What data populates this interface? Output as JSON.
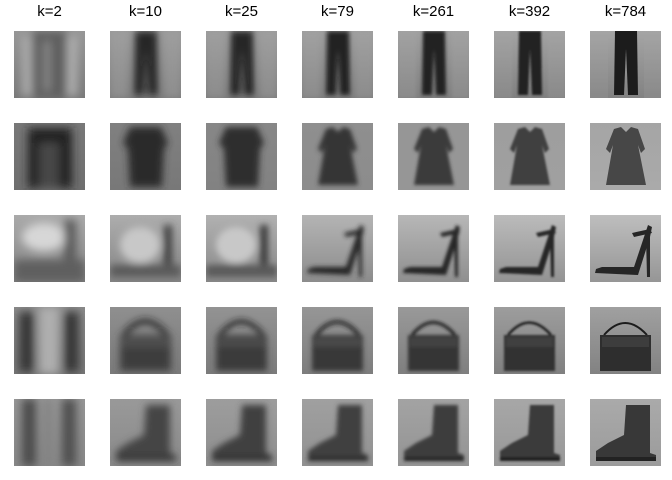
{
  "columns": [
    {
      "label": "k=2"
    },
    {
      "label": "k=10"
    },
    {
      "label": "k=25"
    },
    {
      "label": "k=79"
    },
    {
      "label": "k=261"
    },
    {
      "label": "k=392"
    },
    {
      "label": "k=784"
    }
  ],
  "rows": [
    {
      "subject": "trousers"
    },
    {
      "subject": "dress"
    },
    {
      "subject": "sandal"
    },
    {
      "subject": "bag"
    },
    {
      "subject": "ankle-boot"
    }
  ],
  "colors": {
    "background": "#ffffff",
    "text": "#000000"
  }
}
